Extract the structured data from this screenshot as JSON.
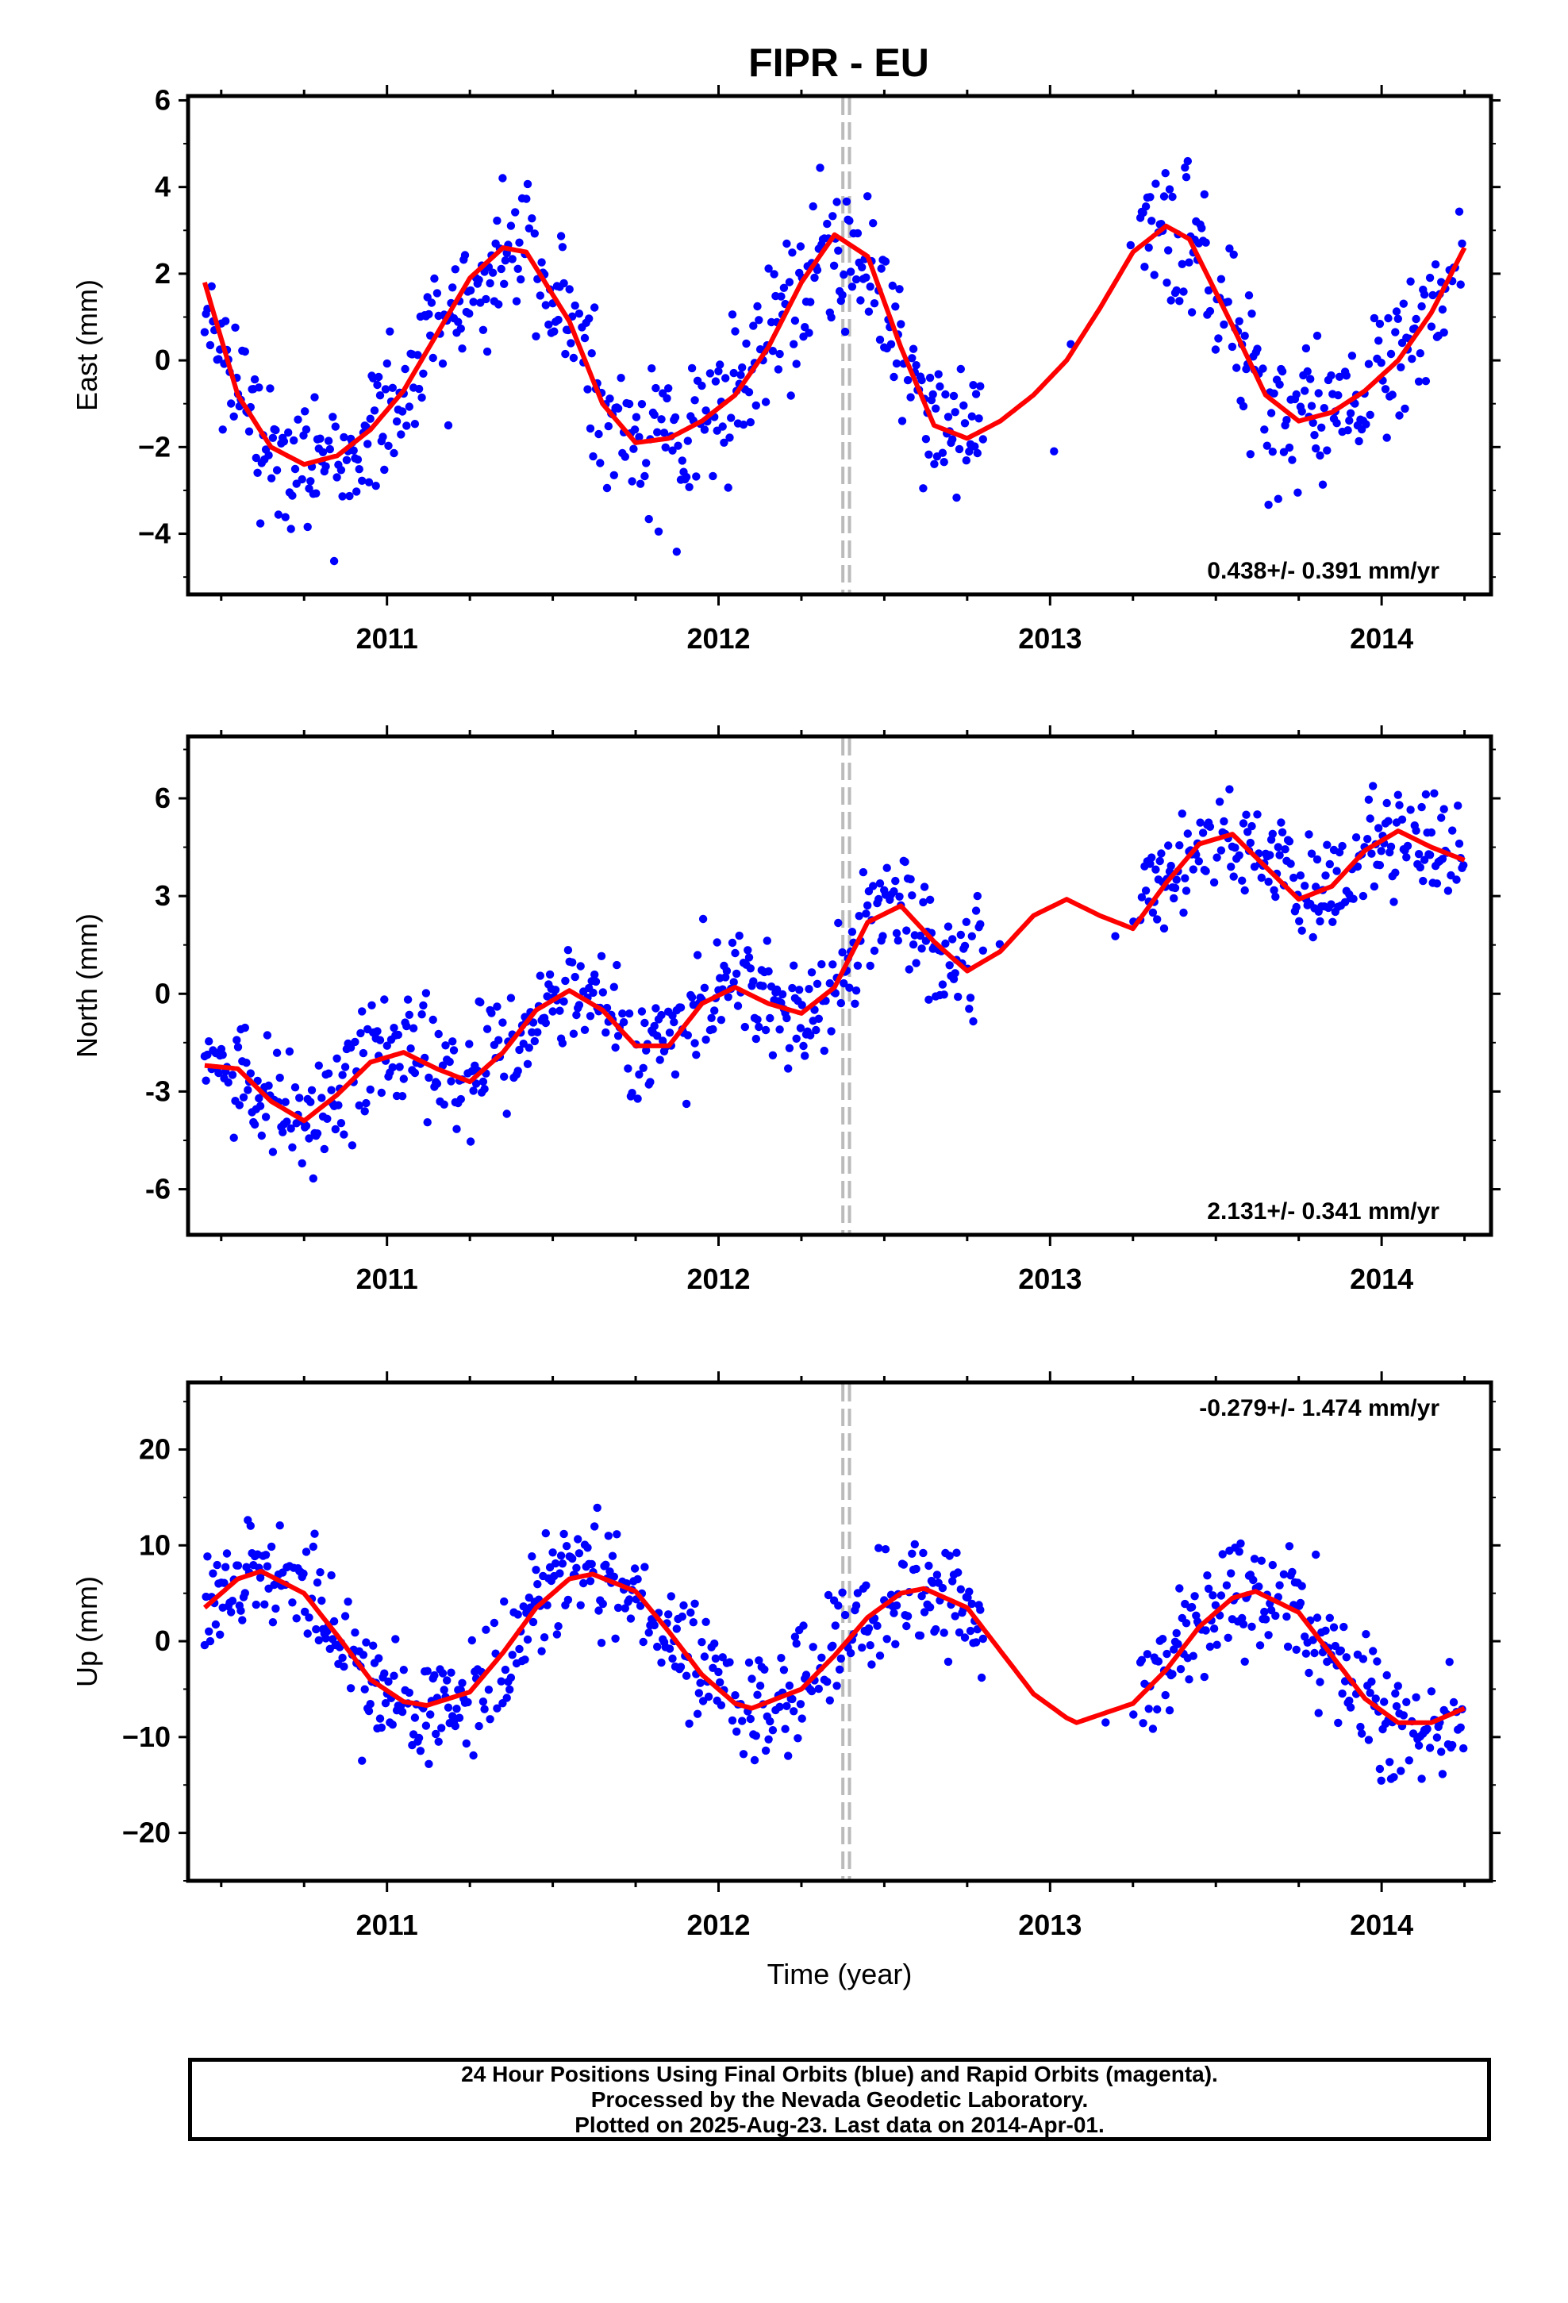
{
  "colors": {
    "data_points": "#0000ff",
    "fit_line": "#ff0000",
    "event_lines": "#bbbbbb",
    "frame": "#000000"
  },
  "chart_data": [
    {
      "type": "scatter",
      "title": "FIPR - EU",
      "ylabel": "East (mm)",
      "xlabel": "",
      "xlim": [
        2010.4,
        2014.33
      ],
      "ylim": [
        -5.4,
        6.1
      ],
      "yticks": [
        -4,
        -2,
        0,
        2,
        4,
        6
      ],
      "ytick_labels": [
        "−4",
        "−2",
        "0",
        "2",
        "4",
        "6"
      ],
      "xtick_labels": [
        "2011",
        "2012",
        "2013",
        "2014"
      ],
      "xticks": [
        2011,
        2012,
        2013,
        2014
      ],
      "rate_label": "0.438+/- 0.391 mm/yr",
      "rate_label_position": "bottom-right",
      "event_lines_x": [
        2012.375,
        2012.395
      ],
      "data_gap": [
        2012.8,
        2013.27
      ],
      "fit_x": [
        2010.45,
        2010.55,
        2010.65,
        2010.75,
        2010.85,
        2010.95,
        2011.05,
        2011.15,
        2011.25,
        2011.35,
        2011.42,
        2011.55,
        2011.65,
        2011.75,
        2011.85,
        2011.95,
        2012.05,
        2012.15,
        2012.25,
        2012.35,
        2012.45,
        2012.55,
        2012.65,
        2012.75,
        2012.85,
        2012.95,
        2013.05,
        2013.15,
        2013.25,
        2013.35,
        2013.42,
        2013.55,
        2013.65,
        2013.75,
        2013.85,
        2013.95,
        2014.05,
        2014.15,
        2014.25
      ],
      "fit_y": [
        1.8,
        -0.8,
        -2.0,
        -2.4,
        -2.2,
        -1.6,
        -0.7,
        0.6,
        1.9,
        2.6,
        2.5,
        0.9,
        -1.0,
        -1.9,
        -1.8,
        -1.4,
        -0.8,
        0.3,
        1.8,
        2.9,
        2.4,
        0.3,
        -1.5,
        -1.8,
        -1.4,
        -0.8,
        0.0,
        1.2,
        2.5,
        3.1,
        2.8,
        0.8,
        -0.8,
        -1.4,
        -1.2,
        -0.7,
        0.0,
        1.1,
        2.6
      ]
    },
    {
      "type": "scatter",
      "ylabel": "North (mm)",
      "xlabel": "",
      "xlim": [
        2010.4,
        2014.33
      ],
      "ylim": [
        -7.4,
        7.9
      ],
      "yticks": [
        -6,
        -3,
        0,
        3,
        6
      ],
      "ytick_labels": [
        "-6",
        "-3",
        "0",
        "3",
        "6"
      ],
      "xtick_labels": [
        "2011",
        "2012",
        "2013",
        "2014"
      ],
      "xticks": [
        2011,
        2012,
        2013,
        2014
      ],
      "rate_label": "2.131+/- 0.341 mm/yr",
      "rate_label_position": "bottom-right",
      "event_lines_x": [
        2012.375,
        2012.395
      ],
      "data_gap": [
        2012.8,
        2013.27
      ],
      "fit_x": [
        2010.45,
        2010.55,
        2010.65,
        2010.75,
        2010.85,
        2010.95,
        2011.05,
        2011.15,
        2011.25,
        2011.35,
        2011.45,
        2011.55,
        2011.65,
        2011.75,
        2011.85,
        2011.95,
        2012.05,
        2012.15,
        2012.25,
        2012.35,
        2012.45,
        2012.55,
        2012.65,
        2012.75,
        2012.85,
        2012.95,
        2013.05,
        2013.15,
        2013.25,
        2013.35,
        2013.45,
        2013.55,
        2013.65,
        2013.75,
        2013.85,
        2013.95,
        2014.05,
        2014.15,
        2014.25
      ],
      "fit_y": [
        -2.2,
        -2.3,
        -3.3,
        -3.9,
        -3.1,
        -2.1,
        -1.8,
        -2.3,
        -2.7,
        -1.8,
        -0.5,
        0.1,
        -0.5,
        -1.6,
        -1.6,
        -0.3,
        0.2,
        -0.3,
        -0.6,
        0.2,
        2.2,
        2.7,
        1.6,
        0.7,
        1.3,
        2.4,
        2.9,
        2.4,
        2.0,
        3.4,
        4.6,
        4.9,
        3.9,
        2.9,
        3.3,
        4.4,
        5.0,
        4.5,
        4.1
      ]
    },
    {
      "type": "scatter",
      "ylabel": "Up (mm)",
      "xlabel": "Time (year)",
      "xlim": [
        2010.4,
        2014.33
      ],
      "ylim": [
        -25,
        27
      ],
      "yticks": [
        -20,
        -10,
        0,
        10,
        20
      ],
      "ytick_labels": [
        "−20",
        "−10",
        "0",
        "10",
        "20"
      ],
      "xtick_labels": [
        "2011",
        "2012",
        "2013",
        "2014"
      ],
      "xticks": [
        2011,
        2012,
        2013,
        2014
      ],
      "rate_label": "-0.279+/- 1.474 mm/yr",
      "rate_label_position": "top-right",
      "event_lines_x": [
        2012.375,
        2012.395
      ],
      "data_gap": [
        2012.8,
        2013.27
      ],
      "fit_x": [
        2010.45,
        2010.55,
        2010.62,
        2010.75,
        2010.85,
        2010.95,
        2011.05,
        2011.12,
        2011.25,
        2011.35,
        2011.45,
        2011.55,
        2011.62,
        2011.75,
        2011.85,
        2011.95,
        2012.05,
        2012.1,
        2012.25,
        2012.35,
        2012.45,
        2012.55,
        2012.62,
        2012.75,
        2012.85,
        2012.95,
        2013.05,
        2013.08,
        2013.25,
        2013.35,
        2013.45,
        2013.55,
        2013.62,
        2013.75,
        2013.85,
        2013.95,
        2014.05,
        2014.15,
        2014.25
      ],
      "fit_y": [
        3.5,
        6.5,
        7.3,
        5.0,
        0.6,
        -4.0,
        -6.3,
        -6.7,
        -5.3,
        -1.2,
        3.5,
        6.5,
        7.0,
        5.2,
        1.0,
        -3.5,
        -6.5,
        -7.0,
        -5.0,
        -1.5,
        2.5,
        5.0,
        5.5,
        3.5,
        -1.0,
        -5.5,
        -8.0,
        -8.5,
        -6.5,
        -3.0,
        1.5,
        4.5,
        5.2,
        3.0,
        -1.5,
        -6.0,
        -8.5,
        -8.5,
        -7.0
      ]
    }
  ],
  "footer": {
    "line1": "24 Hour Positions Using Final Orbits (blue) and Rapid Orbits (magenta).",
    "line2": "Processed by the Nevada Geodetic Laboratory.",
    "line3": "Plotted on 2025-Aug-23. Last data on 2014-Apr-01."
  }
}
